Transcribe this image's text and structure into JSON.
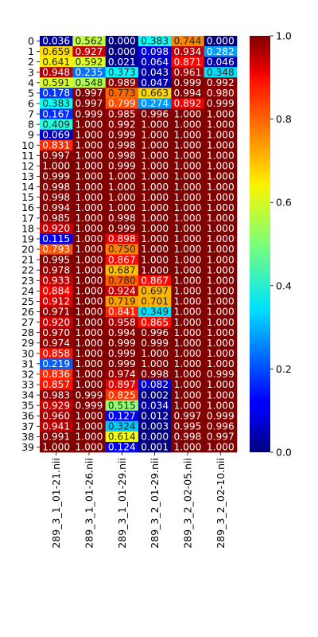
{
  "chart_data": {
    "type": "heatmap",
    "colormap": "jet",
    "vmin": 0.0,
    "vmax": 1.0,
    "colorbar_ticks": [
      "0.0",
      "0.2",
      "0.4",
      "0.6",
      "0.8",
      "1.0"
    ],
    "x_labels": [
      "289_3_1_01-21.nii",
      "289_3_1_01-26.nii",
      "289_3_1_01-29.nii",
      "289_3_2_01-29.nii",
      "289_3_2_02-05.nii",
      "289_3_2_02-10.nii"
    ],
    "y_labels": [
      "0",
      "1",
      "2",
      "3",
      "4",
      "5",
      "6",
      "7",
      "8",
      "9",
      "10",
      "11",
      "12",
      "13",
      "14",
      "15",
      "16",
      "17",
      "18",
      "19",
      "20",
      "21",
      "22",
      "23",
      "24",
      "25",
      "26",
      "27",
      "28",
      "29",
      "30",
      "31",
      "32",
      "33",
      "34",
      "35",
      "36",
      "37",
      "38",
      "39"
    ],
    "values": [
      [
        0.036,
        0.562,
        0.0,
        0.383,
        0.744,
        0.0
      ],
      [
        0.659,
        0.927,
        0.0,
        0.098,
        0.934,
        0.282
      ],
      [
        0.641,
        0.592,
        0.021,
        0.064,
        0.871,
        0.046
      ],
      [
        0.948,
        0.235,
        0.373,
        0.043,
        0.961,
        0.348
      ],
      [
        0.591,
        0.548,
        0.989,
        0.047,
        0.999,
        0.992
      ],
      [
        0.178,
        0.997,
        0.773,
        0.663,
        0.994,
        0.98
      ],
      [
        0.383,
        0.997,
        0.799,
        0.274,
        0.892,
        0.999
      ],
      [
        0.167,
        0.999,
        0.985,
        0.996,
        1.0,
        1.0
      ],
      [
        0.409,
        1.0,
        0.992,
        1.0,
        1.0,
        1.0
      ],
      [
        0.069,
        1.0,
        0.999,
        1.0,
        1.0,
        1.0
      ],
      [
        0.831,
        1.0,
        0.998,
        1.0,
        1.0,
        1.0
      ],
      [
        0.997,
        1.0,
        0.998,
        1.0,
        1.0,
        1.0
      ],
      [
        1.0,
        1.0,
        0.999,
        1.0,
        1.0,
        1.0
      ],
      [
        0.999,
        1.0,
        1.0,
        1.0,
        1.0,
        1.0
      ],
      [
        0.998,
        1.0,
        1.0,
        1.0,
        1.0,
        1.0
      ],
      [
        0.998,
        1.0,
        1.0,
        1.0,
        1.0,
        1.0
      ],
      [
        0.994,
        1.0,
        1.0,
        1.0,
        1.0,
        1.0
      ],
      [
        0.985,
        1.0,
        0.998,
        1.0,
        1.0,
        1.0
      ],
      [
        0.92,
        1.0,
        0.999,
        1.0,
        1.0,
        1.0
      ],
      [
        0.115,
        1.0,
        0.898,
        1.0,
        1.0,
        1.0
      ],
      [
        0.793,
        1.0,
        0.75,
        1.0,
        1.0,
        1.0
      ],
      [
        0.995,
        1.0,
        0.867,
        1.0,
        1.0,
        1.0
      ],
      [
        0.978,
        1.0,
        0.687,
        1.0,
        1.0,
        1.0
      ],
      [
        0.933,
        1.0,
        0.78,
        0.867,
        1.0,
        1.0
      ],
      [
        0.884,
        1.0,
        0.924,
        0.697,
        1.0,
        1.0
      ],
      [
        0.912,
        1.0,
        0.719,
        0.701,
        1.0,
        1.0
      ],
      [
        0.971,
        1.0,
        0.841,
        0.349,
        1.0,
        1.0
      ],
      [
        0.92,
        1.0,
        0.958,
        0.865,
        1.0,
        1.0
      ],
      [
        0.97,
        1.0,
        0.994,
        0.996,
        1.0,
        1.0
      ],
      [
        0.974,
        1.0,
        0.999,
        0.999,
        1.0,
        1.0
      ],
      [
        0.858,
        1.0,
        0.999,
        1.0,
        1.0,
        1.0
      ],
      [
        0.219,
        1.0,
        0.999,
        1.0,
        1.0,
        1.0
      ],
      [
        0.836,
        1.0,
        0.974,
        0.998,
        1.0,
        0.999
      ],
      [
        0.857,
        1.0,
        0.897,
        0.082,
        1.0,
        1.0
      ],
      [
        0.983,
        0.999,
        0.825,
        0.002,
        1.0,
        1.0
      ],
      [
        0.929,
        0.999,
        0.515,
        0.034,
        1.0,
        1.0
      ],
      [
        0.96,
        1.0,
        0.127,
        0.012,
        0.997,
        0.999
      ],
      [
        0.941,
        1.0,
        0.324,
        0.003,
        0.995,
        0.996
      ],
      [
        0.991,
        1.0,
        0.614,
        0.0,
        0.998,
        0.997
      ],
      [
        1.0,
        1.0,
        0.124,
        0.001,
        1.0,
        1.0
      ]
    ]
  }
}
